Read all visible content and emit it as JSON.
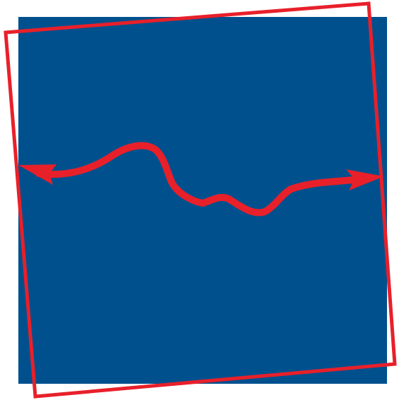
{
  "logo": {
    "shape": "blue square overlaid by tilted red square outline with wavy double-headed red arrow",
    "colors": {
      "background": "#ffffff",
      "square_fill": "#00508e",
      "accent_red": "#e8202a"
    }
  }
}
